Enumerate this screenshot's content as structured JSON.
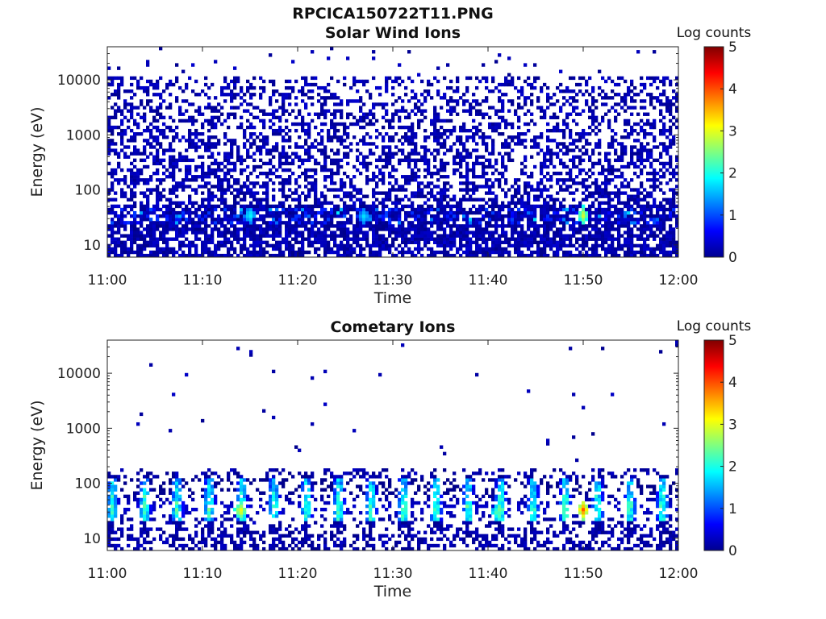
{
  "figure": {
    "title": "RPCICA150722T11.PNG"
  },
  "colormap": "jet",
  "chart_data": [
    {
      "type": "heatmap",
      "title": "Solar Wind Ions",
      "xlabel": "Time",
      "ylabel": "Energy (eV)",
      "x_ticks": [
        "11:00",
        "11:10",
        "11:20",
        "11:30",
        "11:40",
        "11:50",
        "12:00"
      ],
      "x_range_minutes": [
        0,
        60
      ],
      "y_scale": "log",
      "y_ticks": [
        "10",
        "100",
        "1000",
        "10000"
      ],
      "y_range": [
        6,
        40000
      ],
      "colorbar": {
        "label": "Log counts",
        "range": [
          0,
          5
        ],
        "ticks": [
          "0",
          "1",
          "2",
          "3",
          "4",
          "5"
        ]
      },
      "features": [
        {
          "time": "11:15",
          "energy_ev": 35,
          "log_counts": 2.0
        },
        {
          "time": "11:27",
          "energy_ev": 33,
          "log_counts": 1.8
        },
        {
          "time": "11:50",
          "energy_ev": 35,
          "log_counts": 3.0
        }
      ]
    },
    {
      "type": "heatmap",
      "title": "Cometary Ions",
      "xlabel": "Time",
      "ylabel": "Energy (eV)",
      "x_ticks": [
        "11:00",
        "11:10",
        "11:20",
        "11:30",
        "11:40",
        "11:50",
        "12:00"
      ],
      "x_range_minutes": [
        0,
        60
      ],
      "y_scale": "log",
      "y_ticks": [
        "10",
        "100",
        "1000",
        "10000"
      ],
      "y_range": [
        6,
        40000
      ],
      "colorbar": {
        "label": "Log counts",
        "range": [
          0,
          5
        ],
        "ticks": [
          "0",
          "1",
          "2",
          "3",
          "4",
          "5"
        ]
      },
      "features": [
        {
          "time": "11:14",
          "energy_ev": 32,
          "log_counts": 3.3
        },
        {
          "time": "11:50",
          "energy_ev": 33,
          "log_counts": 4.0
        },
        {
          "time": "11:41",
          "energy_ev": 30,
          "log_counts": 2.5
        }
      ]
    }
  ]
}
